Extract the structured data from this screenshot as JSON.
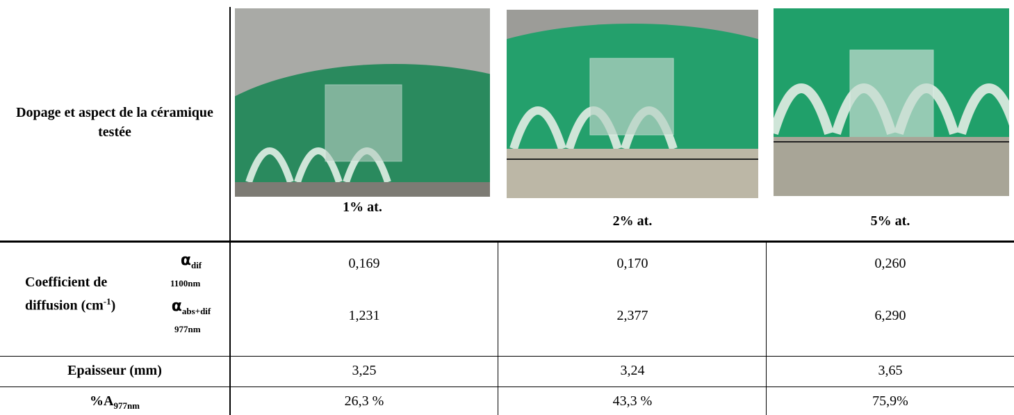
{
  "header": {
    "label": "Dopage et aspect de la céramique testée",
    "samples": [
      "1% at.",
      "2% at.",
      "5% at."
    ]
  },
  "coefficient": {
    "label": "Coefficient de diffusion (cm",
    "exponent": "-1",
    "label_end": ")",
    "rows": [
      {
        "symbol": "α",
        "subscript": "dif",
        "wavelength": "1100nm",
        "values": [
          "0,169",
          "0,170",
          "0,260"
        ]
      },
      {
        "symbol": "α",
        "subscript": "abs+dif",
        "wavelength": "977nm",
        "values": [
          "1,231",
          "2,377",
          "6,290"
        ]
      }
    ]
  },
  "thickness": {
    "label": "Epaisseur (mm)",
    "values": [
      "3,25",
      "3,24",
      "3,65"
    ]
  },
  "absorption": {
    "label": "%A",
    "subscript": "977nm",
    "values": [
      "26,3 %",
      "43,3 %",
      "75,9%"
    ]
  }
}
